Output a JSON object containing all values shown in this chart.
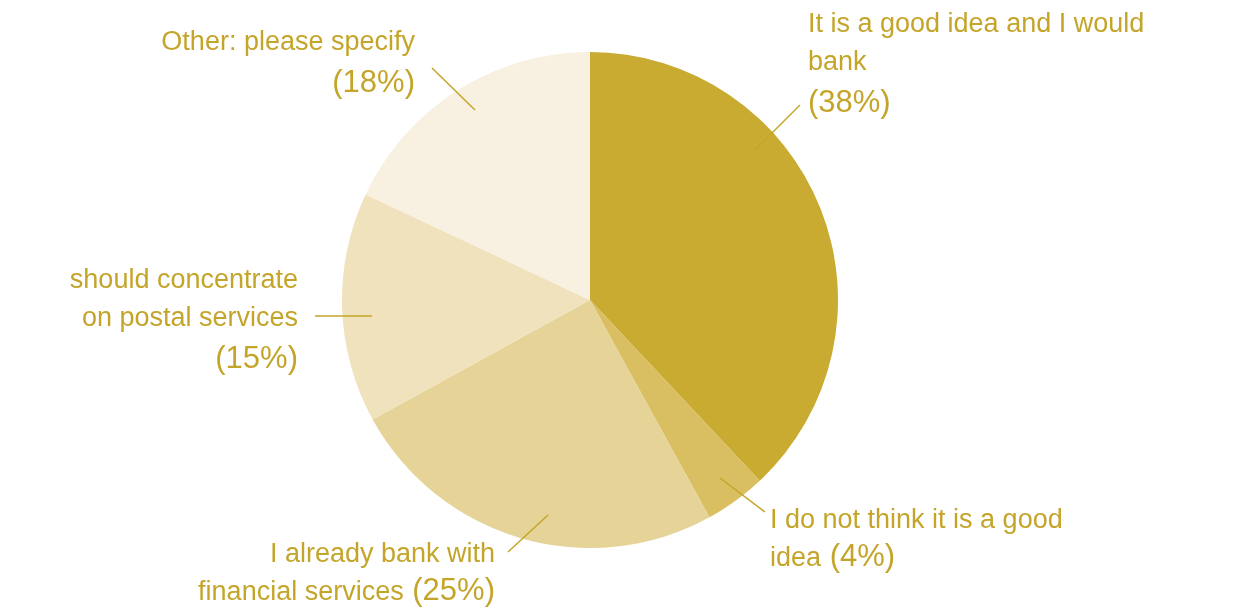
{
  "chart_data": {
    "type": "pie",
    "categories": [
      "It is a good idea and I would bank",
      "I do not think it is a good idea",
      "I already bank with financial services",
      "should concentrate on postal services",
      "Other: please specify"
    ],
    "values": [
      38,
      4,
      25,
      15,
      18
    ],
    "colors": [
      "#c9ab31",
      "#d9be62",
      "#e5d398",
      "#efe2bc",
      "#f8f1e1"
    ],
    "value_labels": [
      "(38%)",
      "(4%)",
      "(25%)",
      "(15%)",
      "(18%)"
    ]
  }
}
